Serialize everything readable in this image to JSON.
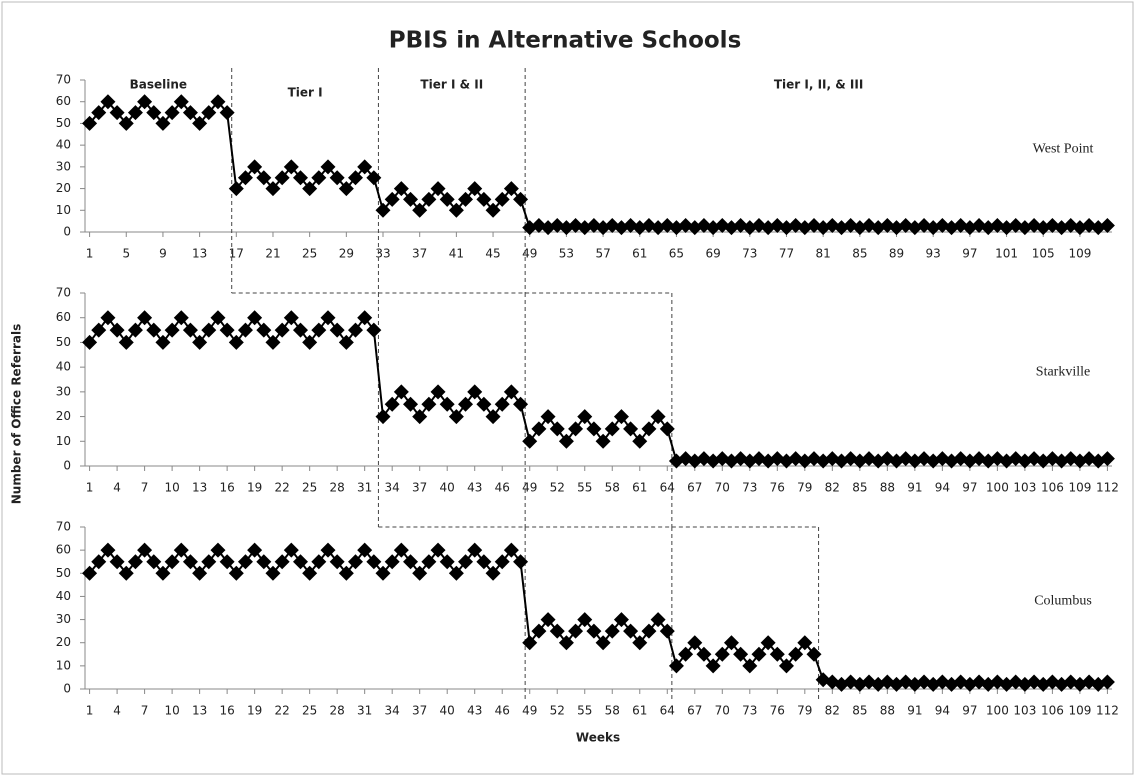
{
  "title": "PBIS in Alternative Schools",
  "y_label": "Number of Office Referrals",
  "x_label": "Weeks",
  "phase_labels": [
    "Baseline",
    "Tier I",
    "Tier I & II",
    "Tier I, II, & III"
  ],
  "chart_data": [
    {
      "type": "line",
      "series": [
        {
          "name": "West Point",
          "color": "#000000",
          "values": [
            50,
            55,
            60,
            55,
            50,
            55,
            60,
            55,
            50,
            55,
            60,
            55,
            50,
            55,
            60,
            55,
            20,
            25,
            30,
            25,
            20,
            25,
            30,
            25,
            20,
            25,
            30,
            25,
            20,
            25,
            30,
            25,
            10,
            15,
            20,
            15,
            10,
            15,
            20,
            15,
            10,
            15,
            20,
            15,
            10,
            15,
            20,
            15,
            2,
            3,
            2,
            3,
            2,
            3,
            2,
            3,
            2,
            3,
            2,
            3,
            2,
            3,
            2,
            3,
            2,
            3,
            2,
            3,
            2,
            3,
            2,
            3,
            2,
            3,
            2,
            3,
            2,
            3,
            2,
            3,
            2,
            3,
            2,
            3,
            2,
            3,
            2,
            3,
            2,
            3,
            2,
            3,
            2,
            3,
            2,
            3,
            2,
            3,
            2,
            3,
            2,
            3,
            2,
            3,
            2,
            3,
            2,
            3,
            2,
            3,
            2,
            3
          ]
        }
      ],
      "x": [
        1,
        2,
        3,
        4,
        5,
        6,
        7,
        8,
        9,
        10,
        11,
        12,
        13,
        14,
        15,
        16,
        17,
        18,
        19,
        20,
        21,
        22,
        23,
        24,
        25,
        26,
        27,
        28,
        29,
        30,
        31,
        32,
        33,
        34,
        35,
        36,
        37,
        38,
        39,
        40,
        41,
        42,
        43,
        44,
        45,
        46,
        47,
        48,
        49,
        50,
        51,
        52,
        53,
        54,
        55,
        56,
        57,
        58,
        59,
        60,
        61,
        62,
        63,
        64,
        65,
        66,
        67,
        68,
        69,
        70,
        71,
        72,
        73,
        74,
        75,
        76,
        77,
        78,
        79,
        80,
        81,
        82,
        83,
        84,
        85,
        86,
        87,
        88,
        89,
        90,
        91,
        92,
        93,
        94,
        95,
        96,
        97,
        98,
        99,
        100,
        101,
        102,
        103,
        104,
        105,
        106,
        107,
        108,
        109,
        110,
        111,
        112
      ],
      "xlim": [
        0.5,
        112.5
      ],
      "xticks": [
        1,
        5,
        9,
        13,
        17,
        21,
        25,
        29,
        33,
        37,
        41,
        45,
        49,
        53,
        57,
        61,
        65,
        69,
        73,
        77,
        81,
        85,
        89,
        93,
        97,
        101,
        105,
        109
      ],
      "ylim": [
        0,
        70
      ],
      "yticks": [
        0,
        10,
        20,
        30,
        40,
        50,
        60,
        70
      ],
      "phase_changes": [
        16.5,
        32.5,
        48.5
      ]
    },
    {
      "type": "line",
      "series": [
        {
          "name": "Starkville",
          "color": "#000000",
          "values": [
            50,
            55,
            60,
            55,
            50,
            55,
            60,
            55,
            50,
            55,
            60,
            55,
            50,
            55,
            60,
            55,
            50,
            55,
            60,
            55,
            50,
            55,
            60,
            55,
            50,
            55,
            60,
            55,
            50,
            55,
            60,
            55,
            20,
            25,
            30,
            25,
            20,
            25,
            30,
            25,
            20,
            25,
            30,
            25,
            20,
            25,
            30,
            25,
            10,
            15,
            20,
            15,
            10,
            15,
            20,
            15,
            10,
            15,
            20,
            15,
            10,
            15,
            20,
            15,
            2,
            3,
            2,
            3,
            2,
            3,
            2,
            3,
            2,
            3,
            2,
            3,
            2,
            3,
            2,
            3,
            2,
            3,
            2,
            3,
            2,
            3,
            2,
            3,
            2,
            3,
            2,
            3,
            2,
            3,
            2,
            3,
            2,
            3,
            2,
            3,
            2,
            3,
            2,
            3,
            2,
            3,
            2,
            3,
            2,
            3,
            2,
            3
          ]
        }
      ],
      "x": [
        1,
        2,
        3,
        4,
        5,
        6,
        7,
        8,
        9,
        10,
        11,
        12,
        13,
        14,
        15,
        16,
        17,
        18,
        19,
        20,
        21,
        22,
        23,
        24,
        25,
        26,
        27,
        28,
        29,
        30,
        31,
        32,
        33,
        34,
        35,
        36,
        37,
        38,
        39,
        40,
        41,
        42,
        43,
        44,
        45,
        46,
        47,
        48,
        49,
        50,
        51,
        52,
        53,
        54,
        55,
        56,
        57,
        58,
        59,
        60,
        61,
        62,
        63,
        64,
        65,
        66,
        67,
        68,
        69,
        70,
        71,
        72,
        73,
        74,
        75,
        76,
        77,
        78,
        79,
        80,
        81,
        82,
        83,
        84,
        85,
        86,
        87,
        88,
        89,
        90,
        91,
        92,
        93,
        94,
        95,
        96,
        97,
        98,
        99,
        100,
        101,
        102,
        103,
        104,
        105,
        106,
        107,
        108,
        109,
        110,
        111,
        112
      ],
      "xlim": [
        0.5,
        112.5
      ],
      "xticks": [
        1,
        4,
        7,
        10,
        13,
        16,
        19,
        22,
        25,
        28,
        31,
        34,
        37,
        40,
        43,
        46,
        49,
        52,
        55,
        58,
        61,
        64,
        67,
        70,
        73,
        76,
        79,
        82,
        85,
        88,
        91,
        94,
        97,
        100,
        103,
        106,
        109,
        112
      ],
      "ylim": [
        0,
        70
      ],
      "yticks": [
        0,
        10,
        20,
        30,
        40,
        50,
        60,
        70
      ],
      "phase_changes": [
        32.5,
        48.5,
        64.5
      ]
    },
    {
      "type": "line",
      "series": [
        {
          "name": "Columbus",
          "color": "#000000",
          "values": [
            50,
            55,
            60,
            55,
            50,
            55,
            60,
            55,
            50,
            55,
            60,
            55,
            50,
            55,
            60,
            55,
            50,
            55,
            60,
            55,
            50,
            55,
            60,
            55,
            50,
            55,
            60,
            55,
            50,
            55,
            60,
            55,
            50,
            55,
            60,
            55,
            50,
            55,
            60,
            55,
            50,
            55,
            60,
            55,
            50,
            55,
            60,
            55,
            20,
            25,
            30,
            25,
            20,
            25,
            30,
            25,
            20,
            25,
            30,
            25,
            20,
            25,
            30,
            25,
            10,
            15,
            20,
            15,
            10,
            15,
            20,
            15,
            10,
            15,
            20,
            15,
            10,
            15,
            20,
            15,
            4,
            3,
            2,
            3,
            2,
            3,
            2,
            3,
            2,
            3,
            2,
            3,
            2,
            3,
            2,
            3,
            2,
            3,
            2,
            3,
            2,
            3,
            2,
            3,
            2,
            3,
            2,
            3,
            2,
            3,
            2,
            3
          ]
        }
      ],
      "x": [
        1,
        2,
        3,
        4,
        5,
        6,
        7,
        8,
        9,
        10,
        11,
        12,
        13,
        14,
        15,
        16,
        17,
        18,
        19,
        20,
        21,
        22,
        23,
        24,
        25,
        26,
        27,
        28,
        29,
        30,
        31,
        32,
        33,
        34,
        35,
        36,
        37,
        38,
        39,
        40,
        41,
        42,
        43,
        44,
        45,
        46,
        47,
        48,
        49,
        50,
        51,
        52,
        53,
        54,
        55,
        56,
        57,
        58,
        59,
        60,
        61,
        62,
        63,
        64,
        65,
        66,
        67,
        68,
        69,
        70,
        71,
        72,
        73,
        74,
        75,
        76,
        77,
        78,
        79,
        80,
        81,
        82,
        83,
        84,
        85,
        86,
        87,
        88,
        89,
        90,
        91,
        92,
        93,
        94,
        95,
        96,
        97,
        98,
        99,
        100,
        101,
        102,
        103,
        104,
        105,
        106,
        107,
        108,
        109,
        110,
        111,
        112
      ],
      "xlim": [
        0.5,
        112.5
      ],
      "xticks": [
        1,
        4,
        7,
        10,
        13,
        16,
        19,
        22,
        25,
        28,
        31,
        34,
        37,
        40,
        43,
        46,
        49,
        52,
        55,
        58,
        61,
        64,
        67,
        70,
        73,
        76,
        79,
        82,
        85,
        88,
        91,
        94,
        97,
        100,
        103,
        106,
        109,
        112
      ],
      "ylim": [
        0,
        70
      ],
      "yticks": [
        0,
        10,
        20,
        30,
        40,
        50,
        60,
        70
      ],
      "phase_changes": [
        48.5,
        64.5,
        80.5
      ]
    }
  ]
}
